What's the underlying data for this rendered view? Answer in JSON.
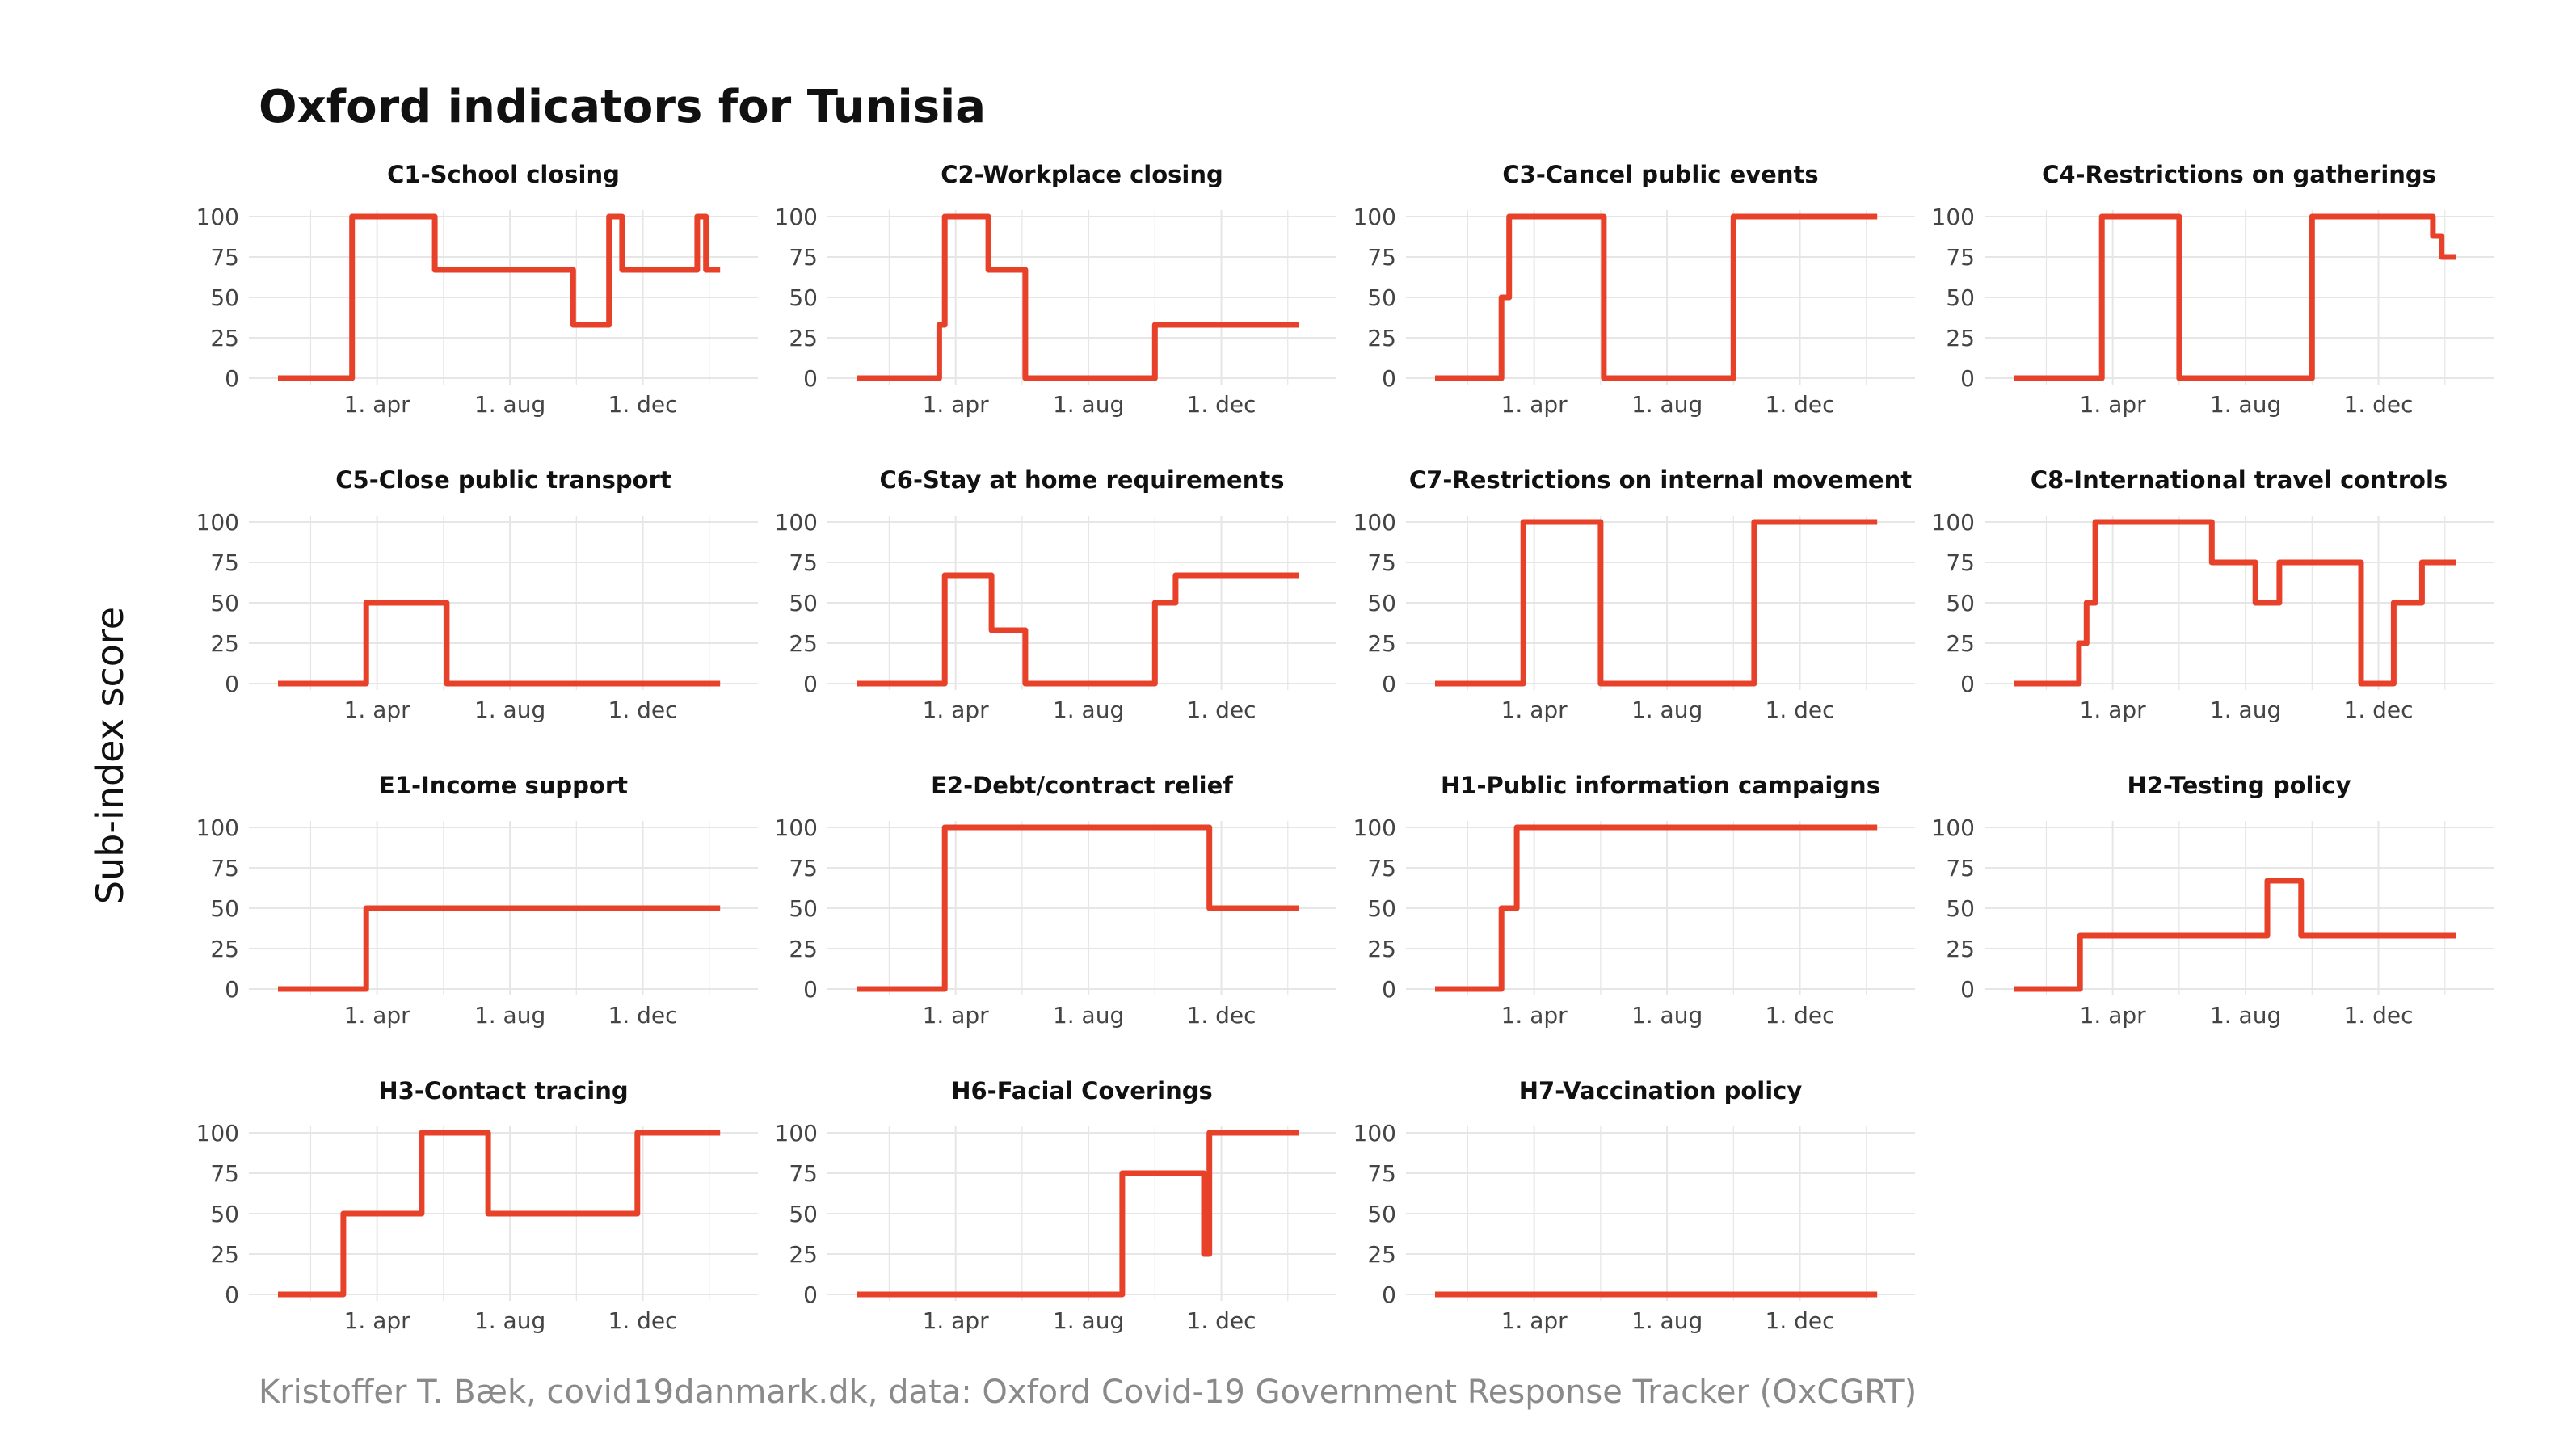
{
  "title": "Oxford indicators for Tunisia",
  "ylabel": "Sub-index score",
  "caption": "Kristoffer T. Bæk, covid19danmark.dk, data: Oxford Covid-19 Government Response Tracker (OxCGRT)",
  "colors": {
    "line": "#e8412a",
    "grid": "#e6e6e6",
    "text": "#111111",
    "caption": "#8a8a8a"
  },
  "chart_data": {
    "type": "line",
    "layout": "facet grid 4 columns",
    "x_ticks": [
      "2020-04-01",
      "2020-08-01",
      "2020-12-01"
    ],
    "x_tick_labels": [
      "1. apr",
      "1. aug",
      "1. dec"
    ],
    "x_range": [
      "2020-01-01",
      "2021-02-18"
    ],
    "y_ticks": [
      0,
      25,
      50,
      75,
      100
    ],
    "ylim": [
      0,
      100
    ],
    "panels": [
      {
        "title": "C1-School closing",
        "x": [
          "2020-01-01",
          "2020-03-09",
          "2020-03-09",
          "2020-05-24",
          "2020-05-24",
          "2020-09-28",
          "2020-09-28",
          "2020-10-31",
          "2020-10-31",
          "2020-11-12",
          "2020-11-12",
          "2021-01-20",
          "2021-01-20",
          "2021-01-28",
          "2021-01-28",
          "2021-02-10"
        ],
        "y": [
          0,
          0,
          100,
          100,
          67,
          67,
          33,
          33,
          100,
          100,
          67,
          67,
          100,
          100,
          67,
          67
        ]
      },
      {
        "title": "C2-Workplace closing",
        "x": [
          "2020-01-01",
          "2020-03-17",
          "2020-03-17",
          "2020-03-22",
          "2020-03-22",
          "2020-05-01",
          "2020-05-01",
          "2020-06-04",
          "2020-06-04",
          "2020-10-01",
          "2020-10-01",
          "2021-02-10"
        ],
        "y": [
          0,
          0,
          33,
          33,
          100,
          100,
          67,
          67,
          0,
          0,
          33,
          33
        ]
      },
      {
        "title": "C3-Cancel public events",
        "x": [
          "2020-01-01",
          "2020-03-02",
          "2020-03-02",
          "2020-03-09",
          "2020-03-09",
          "2020-06-04",
          "2020-06-04",
          "2020-10-01",
          "2020-10-01",
          "2021-02-10"
        ],
        "y": [
          0,
          0,
          50,
          50,
          100,
          100,
          0,
          0,
          100,
          100
        ]
      },
      {
        "title": "C4-Restrictions on gatherings",
        "x": [
          "2020-01-01",
          "2020-03-22",
          "2020-03-22",
          "2020-06-01",
          "2020-06-01",
          "2020-10-01",
          "2020-10-01",
          "2021-01-20",
          "2021-01-20",
          "2021-01-28",
          "2021-01-28",
          "2021-02-10"
        ],
        "y": [
          0,
          0,
          100,
          100,
          0,
          0,
          100,
          100,
          88,
          88,
          75,
          75
        ]
      },
      {
        "title": "C5-Close public transport",
        "x": [
          "2020-01-01",
          "2020-03-22",
          "2020-03-22",
          "2020-06-04",
          "2020-06-04",
          "2021-02-10"
        ],
        "y": [
          0,
          0,
          50,
          50,
          0,
          0
        ]
      },
      {
        "title": "C6-Stay at home requirements",
        "x": [
          "2020-01-01",
          "2020-03-22",
          "2020-03-22",
          "2020-05-04",
          "2020-05-04",
          "2020-06-04",
          "2020-06-04",
          "2020-10-01",
          "2020-10-01",
          "2020-10-20",
          "2020-10-20",
          "2021-02-10"
        ],
        "y": [
          0,
          0,
          67,
          67,
          33,
          33,
          0,
          0,
          50,
          50,
          67,
          67
        ]
      },
      {
        "title": "C7-Restrictions on internal movement",
        "x": [
          "2020-01-01",
          "2020-03-22",
          "2020-03-22",
          "2020-06-01",
          "2020-06-01",
          "2020-10-20",
          "2020-10-20",
          "2021-02-10"
        ],
        "y": [
          0,
          0,
          100,
          100,
          0,
          0,
          100,
          100
        ]
      },
      {
        "title": "C8-International travel controls",
        "x": [
          "2020-01-01",
          "2020-03-01",
          "2020-03-01",
          "2020-03-08",
          "2020-03-08",
          "2020-03-16",
          "2020-03-16",
          "2020-07-01",
          "2020-07-01",
          "2020-08-10",
          "2020-08-10",
          "2020-09-01",
          "2020-09-01",
          "2020-11-15",
          "2020-11-15",
          "2020-12-15",
          "2020-12-15",
          "2021-01-10",
          "2021-01-10",
          "2021-02-10"
        ],
        "y": [
          0,
          0,
          25,
          25,
          50,
          50,
          100,
          100,
          75,
          75,
          50,
          50,
          75,
          75,
          0,
          0,
          50,
          50,
          75,
          75
        ]
      },
      {
        "title": "E1-Income support",
        "x": [
          "2020-01-01",
          "2020-03-22",
          "2020-03-22",
          "2021-02-10"
        ],
        "y": [
          0,
          0,
          50,
          50
        ]
      },
      {
        "title": "E2-Debt/contract relief",
        "x": [
          "2020-01-01",
          "2020-03-22",
          "2020-03-22",
          "2020-11-20",
          "2020-11-20",
          "2021-02-10"
        ],
        "y": [
          0,
          0,
          100,
          100,
          50,
          50
        ]
      },
      {
        "title": "H1-Public information campaigns",
        "x": [
          "2020-01-01",
          "2020-03-02",
          "2020-03-02",
          "2020-03-16",
          "2020-03-16",
          "2021-02-10"
        ],
        "y": [
          0,
          0,
          50,
          50,
          100,
          100
        ]
      },
      {
        "title": "H2-Testing policy",
        "x": [
          "2020-01-01",
          "2020-03-02",
          "2020-03-02",
          "2020-08-21",
          "2020-08-21",
          "2020-09-21",
          "2020-09-21",
          "2021-02-10"
        ],
        "y": [
          0,
          0,
          33,
          33,
          67,
          67,
          33,
          33
        ]
      },
      {
        "title": "H3-Contact tracing",
        "x": [
          "2020-01-01",
          "2020-03-01",
          "2020-03-01",
          "2020-05-12",
          "2020-05-12",
          "2020-07-12",
          "2020-07-12",
          "2020-11-26",
          "2020-11-26",
          "2021-02-10"
        ],
        "y": [
          0,
          0,
          50,
          50,
          100,
          100,
          50,
          50,
          100,
          100
        ]
      },
      {
        "title": "H6-Facial Coverings",
        "x": [
          "2020-01-01",
          "2020-09-01",
          "2020-09-01",
          "2020-11-15",
          "2020-11-15",
          "2020-11-20",
          "2020-11-20",
          "2021-02-10"
        ],
        "y": [
          0,
          0,
          75,
          75,
          25,
          25,
          100,
          100
        ]
      },
      {
        "title": "H7-Vaccination policy",
        "x": [
          "2020-01-01",
          "2021-02-10"
        ],
        "y": [
          0,
          0
        ]
      }
    ]
  }
}
